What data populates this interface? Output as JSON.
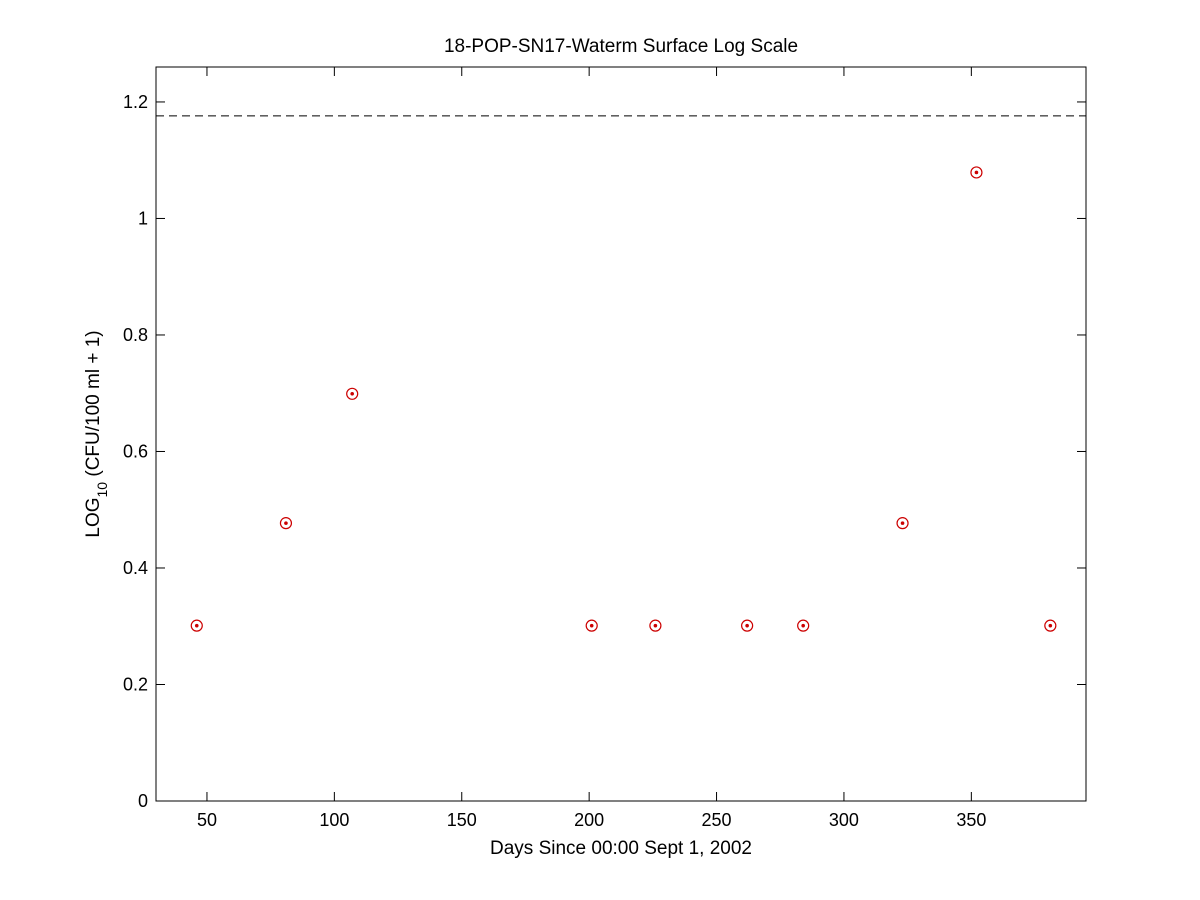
{
  "chart_data": {
    "type": "scatter",
    "title": "18-POP-SN17-Waterm Surface Log Scale",
    "xlabel": "Days Since 00:00 Sept 1, 2002",
    "ylabel": {
      "prefix": "LOG",
      "subscript": "10",
      "suffix": " (CFU/100 ml + 1)"
    },
    "xlim": [
      30,
      395
    ],
    "ylim": [
      0,
      1.26
    ],
    "xticks": [
      50,
      100,
      150,
      200,
      250,
      300,
      350
    ],
    "yticks": [
      0,
      0.2,
      0.4,
      0.6,
      0.8,
      1,
      1.2
    ],
    "ytick_labels": [
      "0",
      "0.2",
      "0.4",
      "0.6",
      "0.8",
      "1",
      "1.2"
    ],
    "grid": false,
    "reference_line": {
      "y": 1.176,
      "style": "dashed",
      "color": "#000000"
    },
    "series": [
      {
        "marker": "circle-with-dot",
        "color": "#cc0000",
        "x": [
          46,
          81,
          107,
          201,
          226,
          262,
          284,
          323,
          352,
          381
        ],
        "y": [
          0.301,
          0.477,
          0.699,
          0.301,
          0.301,
          0.301,
          0.301,
          0.477,
          1.079,
          0.301
        ]
      }
    ]
  }
}
